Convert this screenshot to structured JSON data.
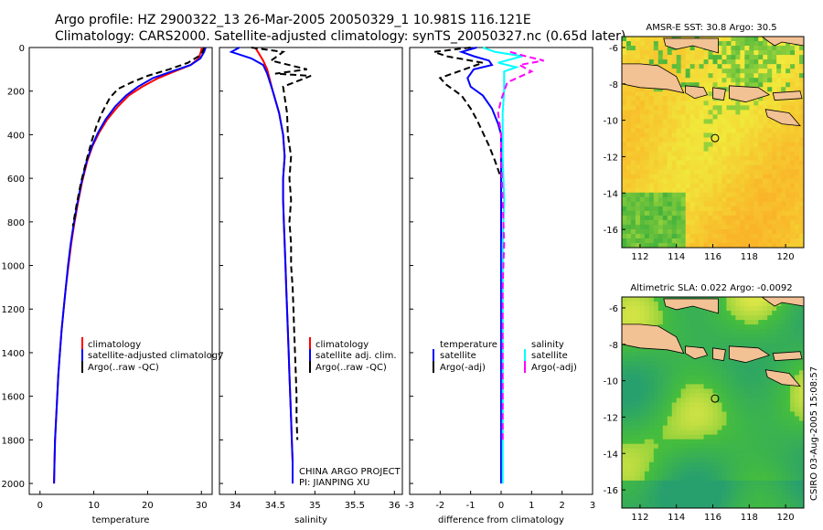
{
  "header": {
    "line1": "Argo profile: HZ 2900322_13 26-Mar-2005 20050329_1 10.981S 116.121E",
    "line2": "Climatology: CARS2000. Satellite-adjusted climatology: synTS_20050327.nc (0.65d later)"
  },
  "side_stamp": "CSIRO 03-Aug-2005 15:08:57",
  "colors": {
    "climatology": "#ff0000",
    "satellite": "#0000ff",
    "argo": "#000000",
    "salinity_sat": "#00ffff",
    "salinity_argo": "#ff00ff",
    "land": "#f2c194",
    "coast": "#000000"
  },
  "chart_data": [
    {
      "type": "line",
      "id": "temperature",
      "xlabel": "temperature",
      "ylabel": "",
      "xlim": [
        -2,
        32
      ],
      "ylim": [
        2050,
        0
      ],
      "xticks": [
        "0",
        "10",
        "20",
        "30"
      ],
      "yticks": [
        "0",
        "200",
        "400",
        "600",
        "800",
        "1000",
        "1200",
        "1400",
        "1600",
        "1800",
        "2000"
      ],
      "legend_loc": "lower-middle",
      "series": [
        {
          "name": "climatology",
          "color": "#ff0000",
          "dash": "",
          "points": [
            [
              30.1,
              0
            ],
            [
              29.9,
              20
            ],
            [
              29.5,
              50
            ],
            [
              28.0,
              80
            ],
            [
              25.0,
              110
            ],
            [
              22.0,
              140
            ],
            [
              19.0,
              180
            ],
            [
              16.5,
              220
            ],
            [
              14.5,
              270
            ],
            [
              12.5,
              330
            ],
            [
              11.0,
              390
            ],
            [
              9.8,
              450
            ],
            [
              8.8,
              520
            ],
            [
              7.8,
              620
            ],
            [
              7.0,
              720
            ],
            [
              6.3,
              820
            ],
            [
              5.8,
              900
            ],
            [
              5.3,
              1000
            ],
            [
              4.8,
              1100
            ],
            [
              4.4,
              1200
            ],
            [
              4.0,
              1300
            ],
            [
              3.7,
              1400
            ],
            [
              3.4,
              1500
            ],
            [
              3.2,
              1600
            ],
            [
              3.0,
              1700
            ],
            [
              2.8,
              1800
            ],
            [
              2.7,
              1900
            ],
            [
              2.6,
              2000
            ]
          ]
        },
        {
          "name": "satellite-adjusted climatology",
          "color": "#0000ff",
          "dash": "",
          "points": [
            [
              30.8,
              0
            ],
            [
              30.5,
              20
            ],
            [
              29.8,
              50
            ],
            [
              28.0,
              80
            ],
            [
              24.5,
              110
            ],
            [
              21.0,
              140
            ],
            [
              18.2,
              180
            ],
            [
              16.0,
              220
            ],
            [
              14.0,
              270
            ],
            [
              12.2,
              330
            ],
            [
              10.8,
              390
            ],
            [
              9.7,
              450
            ],
            [
              8.7,
              520
            ],
            [
              7.7,
              620
            ],
            [
              6.9,
              720
            ],
            [
              6.2,
              820
            ],
            [
              5.7,
              900
            ],
            [
              5.2,
              1000
            ],
            [
              4.8,
              1100
            ],
            [
              4.4,
              1200
            ],
            [
              4.0,
              1300
            ],
            [
              3.7,
              1400
            ],
            [
              3.4,
              1500
            ],
            [
              3.2,
              1600
            ],
            [
              3.0,
              1700
            ],
            [
              2.8,
              1800
            ],
            [
              2.7,
              1900
            ],
            [
              2.6,
              2000
            ]
          ]
        },
        {
          "name": "Argo(..raw -QC)",
          "color": "#000000",
          "dash": "7,4",
          "points": [
            [
              30.5,
              0
            ],
            [
              30.2,
              20
            ],
            [
              29.5,
              40
            ],
            [
              27.5,
              70
            ],
            [
              24.0,
              100
            ],
            [
              20.0,
              130
            ],
            [
              17.0,
              160
            ],
            [
              14.5,
              190
            ],
            [
              13.0,
              230
            ],
            [
              11.5,
              300
            ],
            [
              10.5,
              360
            ],
            [
              9.6,
              430
            ],
            [
              8.6,
              520
            ],
            [
              7.6,
              620
            ],
            [
              6.8,
              720
            ],
            [
              6.1,
              820
            ]
          ]
        }
      ]
    },
    {
      "type": "line",
      "id": "salinity",
      "xlabel": "salinity",
      "ylabel": "",
      "xlim": [
        33.8,
        36.1
      ],
      "ylim": [
        2050,
        0
      ],
      "xticks": [
        "34",
        "34.5",
        "35",
        "35.5",
        "36"
      ],
      "legend_loc": "lower-middle",
      "series": [
        {
          "name": "climatology",
          "color": "#ff0000",
          "dash": "",
          "points": [
            [
              34.25,
              0
            ],
            [
              34.3,
              30
            ],
            [
              34.35,
              60
            ],
            [
              34.4,
              100
            ],
            [
              34.47,
              200
            ],
            [
              34.55,
              300
            ],
            [
              34.6,
              400
            ],
            [
              34.62,
              500
            ],
            [
              34.6,
              600
            ],
            [
              34.6,
              700
            ],
            [
              34.61,
              800
            ],
            [
              34.62,
              900
            ],
            [
              34.63,
              1000
            ],
            [
              34.64,
              1100
            ],
            [
              34.65,
              1200
            ],
            [
              34.66,
              1300
            ],
            [
              34.67,
              1400
            ],
            [
              34.68,
              1500
            ],
            [
              34.69,
              1600
            ],
            [
              34.7,
              1700
            ],
            [
              34.71,
              1800
            ],
            [
              34.72,
              1900
            ],
            [
              34.72,
              2000
            ]
          ]
        },
        {
          "name": "satellite adj. clim.",
          "color": "#0000ff",
          "dash": "",
          "points": [
            [
              34.05,
              0
            ],
            [
              33.95,
              20
            ],
            [
              34.2,
              50
            ],
            [
              34.35,
              80
            ],
            [
              34.4,
              120
            ],
            [
              34.47,
              200
            ],
            [
              34.55,
              300
            ],
            [
              34.6,
              400
            ],
            [
              34.62,
              500
            ],
            [
              34.6,
              600
            ],
            [
              34.6,
              700
            ],
            [
              34.61,
              800
            ],
            [
              34.62,
              900
            ],
            [
              34.63,
              1000
            ],
            [
              34.64,
              1100
            ],
            [
              34.65,
              1200
            ],
            [
              34.66,
              1300
            ],
            [
              34.67,
              1400
            ],
            [
              34.68,
              1500
            ],
            [
              34.69,
              1600
            ],
            [
              34.7,
              1700
            ],
            [
              34.71,
              1800
            ],
            [
              34.72,
              1900
            ],
            [
              34.72,
              2000
            ]
          ]
        },
        {
          "name": "Argo(..raw -QC)",
          "color": "#000000",
          "dash": "7,4",
          "points": [
            [
              34.2,
              0
            ],
            [
              34.6,
              20
            ],
            [
              34.45,
              60
            ],
            [
              34.9,
              100
            ],
            [
              34.5,
              120
            ],
            [
              34.95,
              130
            ],
            [
              34.6,
              180
            ],
            [
              34.65,
              300
            ],
            [
              34.66,
              400
            ],
            [
              34.7,
              500
            ],
            [
              34.68,
              600
            ],
            [
              34.7,
              700
            ],
            [
              34.68,
              800
            ],
            [
              34.7,
              900
            ],
            [
              34.7,
              1000
            ],
            [
              34.72,
              1100
            ],
            [
              34.73,
              1200
            ],
            [
              34.74,
              1300
            ],
            [
              34.75,
              1400
            ],
            [
              34.76,
              1500
            ],
            [
              34.77,
              1600
            ],
            [
              34.77,
              1700
            ],
            [
              34.78,
              1800
            ]
          ]
        }
      ]
    },
    {
      "type": "line",
      "id": "difference",
      "xlabel": "difference from climatology",
      "ylabel": "",
      "xlim": [
        -3,
        3
      ],
      "ylim": [
        2050,
        0
      ],
      "xticks": [
        "-3",
        "-2",
        "-1",
        "0",
        "1",
        "2",
        "3"
      ],
      "legend_loc": "lower-middle",
      "series": [
        {
          "name": "temperature satellite",
          "color": "#0000ff",
          "dash": "",
          "points": [
            [
              -0.8,
              0
            ],
            [
              -1.3,
              20
            ],
            [
              -0.9,
              40
            ],
            [
              -0.4,
              60
            ],
            [
              -0.3,
              80
            ],
            [
              -0.9,
              100
            ],
            [
              -1.1,
              140
            ],
            [
              -1.0,
              180
            ],
            [
              -0.6,
              220
            ],
            [
              -0.3,
              280
            ],
            [
              -0.1,
              350
            ],
            [
              0,
              400
            ],
            [
              0,
              2000
            ]
          ]
        },
        {
          "name": "temperature Argo(-adj)",
          "color": "#000000",
          "dash": "7,4",
          "points": [
            [
              -1.0,
              0
            ],
            [
              -2.2,
              20
            ],
            [
              -1.8,
              40
            ],
            [
              -0.6,
              70
            ],
            [
              -1.4,
              110
            ],
            [
              -2.0,
              140
            ],
            [
              -1.8,
              170
            ],
            [
              -1.3,
              220
            ],
            [
              -1.0,
              280
            ],
            [
              -0.8,
              330
            ],
            [
              -0.6,
              390
            ],
            [
              -0.4,
              450
            ],
            [
              -0.2,
              520
            ],
            [
              0,
              600
            ]
          ]
        },
        {
          "name": "salinity satellite",
          "color": "#00ffff",
          "dash": "",
          "points": [
            [
              -0.6,
              0
            ],
            [
              -0.2,
              20
            ],
            [
              0.7,
              40
            ],
            [
              -0.1,
              70
            ],
            [
              0.5,
              90
            ],
            [
              0.1,
              110
            ],
            [
              0.1,
              200
            ],
            [
              0.05,
              300
            ],
            [
              0.05,
              500
            ],
            [
              0.1,
              700
            ],
            [
              0.05,
              900
            ],
            [
              0.05,
              1100
            ],
            [
              0.05,
              1300
            ],
            [
              0.05,
              1500
            ],
            [
              0.05,
              1700
            ],
            [
              0.05,
              1900
            ],
            [
              0.05,
              2000
            ]
          ]
        },
        {
          "name": "salinity Argo(-adj)",
          "color": "#ff00ff",
          "dash": "7,4",
          "points": [
            [
              0.3,
              20
            ],
            [
              0.8,
              40
            ],
            [
              1.4,
              60
            ],
            [
              0.6,
              80
            ],
            [
              1.0,
              110
            ],
            [
              0.2,
              160
            ],
            [
              0.0,
              240
            ],
            [
              -0.1,
              300
            ],
            [
              0.0,
              400
            ],
            [
              0.0,
              500
            ],
            [
              0.05,
              700
            ],
            [
              0.1,
              900
            ],
            [
              0.05,
              1100
            ],
            [
              0.05,
              1300
            ],
            [
              0.05,
              1500
            ],
            [
              0.05,
              1700
            ],
            [
              0.05,
              1800
            ]
          ]
        }
      ]
    },
    {
      "type": "heatmap",
      "id": "sst_map",
      "title": "AMSR-E SST: 30.8 Argo: 30.5",
      "xlim": [
        111,
        121
      ],
      "ylim": [
        -17,
        -5.4
      ],
      "xticks": [
        "112",
        "114",
        "116",
        "118",
        "120"
      ],
      "yticks": [
        "-6",
        "-8",
        "-10",
        "-12",
        "-14",
        "-16"
      ],
      "marker": {
        "lon": 116.121,
        "lat": -10.981
      }
    },
    {
      "type": "heatmap",
      "id": "sla_map",
      "title": "Altimetric SLA: 0.022 Argo: -0.0092",
      "xlim": [
        111,
        121
      ],
      "ylim": [
        -17,
        -5.4
      ],
      "xticks": [
        "112",
        "114",
        "116",
        "118",
        "120"
      ],
      "yticks": [
        "-6",
        "-8",
        "-10",
        "-12",
        "-14",
        "-16"
      ],
      "marker": {
        "lon": 116.121,
        "lat": -10.981
      }
    }
  ],
  "legends": {
    "temperature": [
      "climatology",
      "satellite-adjusted climatology",
      "Argo(..raw -QC)"
    ],
    "salinity": [
      "climatology",
      "satellite adj. clim.",
      "Argo(..raw -QC)"
    ],
    "difference_left_head": "temperature",
    "difference_left": [
      "satellite",
      "Argo(-adj)"
    ],
    "difference_right_head": "salinity",
    "difference_right": [
      "satellite",
      "Argo(-adj)"
    ]
  },
  "project_note": {
    "line1": "CHINA ARGO PROJECT",
    "line2": "PI: JIANPING XU"
  }
}
